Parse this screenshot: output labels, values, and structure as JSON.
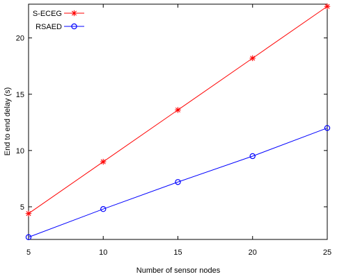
{
  "chart_data": {
    "type": "line",
    "title": "",
    "xlabel": "Number of sensor nodes",
    "ylabel": "End to end delay (s)",
    "x": [
      5,
      10,
      15,
      20,
      25
    ],
    "xlim": [
      5,
      25
    ],
    "ylim": [
      2.1,
      23
    ],
    "xticks": [
      "5",
      "10",
      "15",
      "20",
      "25"
    ],
    "yticks": [
      "5",
      "10",
      "15",
      "20"
    ],
    "grid": false,
    "legend_position": "top-left",
    "series": [
      {
        "name": "S-ECEG",
        "marker": "asterisk",
        "color": "#ff0000",
        "values": [
          4.4,
          9.0,
          13.6,
          18.2,
          22.8
        ]
      },
      {
        "name": "RSAED",
        "marker": "circle",
        "color": "#0000ff",
        "values": [
          2.3,
          4.8,
          7.2,
          9.5,
          12.0
        ]
      }
    ]
  }
}
